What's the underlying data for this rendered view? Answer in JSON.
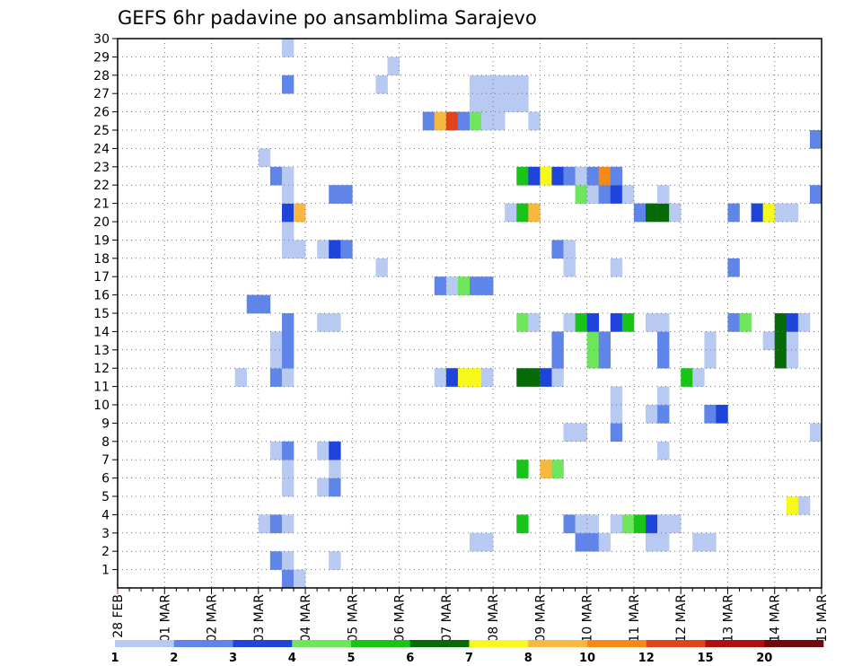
{
  "chart_data": {
    "type": "heatmap",
    "title": "GEFS 6hr padavine po ansamblima Sarajevo",
    "xlabel": "",
    "ylabel": "",
    "x_tick_labels": [
      "28 FEB",
      "01 MAR",
      "02 MAR",
      "03 MAR",
      "04 MAR",
      "05 MAR",
      "06 MAR",
      "07 MAR",
      "08 MAR",
      "09 MAR",
      "10 MAR",
      "11 MAR",
      "12 MAR",
      "13 MAR",
      "14 MAR",
      "15 MAR"
    ],
    "x_unit": "6-hour steps from 28 FEB 00Z",
    "xlim": [
      0,
      60
    ],
    "y_tick_labels": [
      "1",
      "2",
      "3",
      "4",
      "5",
      "6",
      "7",
      "8",
      "9",
      "10",
      "11",
      "12",
      "13",
      "14",
      "15",
      "16",
      "17",
      "18",
      "19",
      "20",
      "21",
      "22",
      "23",
      "24",
      "25",
      "26",
      "27",
      "28",
      "29",
      "30"
    ],
    "ylim": [
      0,
      30
    ],
    "grid": true,
    "legend": {
      "placement": "bottom",
      "thresholds": [
        1,
        2,
        3,
        4,
        5,
        6,
        7,
        8,
        10,
        12,
        15,
        20
      ],
      "colors": [
        "#b8c9f2",
        "#5f85e8",
        "#1f44db",
        "#6ee65c",
        "#19c419",
        "#066b06",
        "#f8f81a",
        "#f8b840",
        "#f58a19",
        "#e0421a",
        "#b01010",
        "#700a0a"
      ]
    },
    "cells": [
      {
        "m": 1,
        "t": 14,
        "c": 1
      },
      {
        "m": 1,
        "t": 15,
        "c": 0
      },
      {
        "m": 2,
        "t": 13,
        "c": 1
      },
      {
        "m": 2,
        "t": 14,
        "c": 0
      },
      {
        "m": 2,
        "t": 18,
        "c": 0
      },
      {
        "m": 3,
        "t": 30,
        "c": 0
      },
      {
        "m": 3,
        "t": 31,
        "c": 0
      },
      {
        "m": 3,
        "t": 39,
        "c": 1
      },
      {
        "m": 3,
        "t": 40,
        "c": 1
      },
      {
        "m": 3,
        "t": 41,
        "c": 0
      },
      {
        "m": 3,
        "t": 45,
        "c": 0
      },
      {
        "m": 3,
        "t": 46,
        "c": 0
      },
      {
        "m": 3,
        "t": 49,
        "c": 0
      },
      {
        "m": 3,
        "t": 50,
        "c": 0
      },
      {
        "m": 4,
        "t": 12,
        "c": 0
      },
      {
        "m": 4,
        "t": 13,
        "c": 1
      },
      {
        "m": 4,
        "t": 14,
        "c": 0
      },
      {
        "m": 4,
        "t": 34,
        "c": 4
      },
      {
        "m": 4,
        "t": 38,
        "c": 1
      },
      {
        "m": 4,
        "t": 39,
        "c": 0
      },
      {
        "m": 4,
        "t": 40,
        "c": 0
      },
      {
        "m": 4,
        "t": 42,
        "c": 0
      },
      {
        "m": 4,
        "t": 43,
        "c": 3
      },
      {
        "m": 4,
        "t": 44,
        "c": 4
      },
      {
        "m": 4,
        "t": 45,
        "c": 2
      },
      {
        "m": 4,
        "t": 46,
        "c": 0
      },
      {
        "m": 4,
        "t": 47,
        "c": 0
      },
      {
        "m": 5,
        "t": 57,
        "c": 6
      },
      {
        "m": 5,
        "t": 58,
        "c": 0
      },
      {
        "m": 6,
        "t": 14,
        "c": 0
      },
      {
        "m": 6,
        "t": 17,
        "c": 0
      },
      {
        "m": 6,
        "t": 18,
        "c": 1
      },
      {
        "m": 7,
        "t": 14,
        "c": 0
      },
      {
        "m": 7,
        "t": 18,
        "c": 0
      },
      {
        "m": 7,
        "t": 34,
        "c": 4
      },
      {
        "m": 7,
        "t": 36,
        "c": 7
      },
      {
        "m": 7,
        "t": 37,
        "c": 3
      },
      {
        "m": 8,
        "t": 13,
        "c": 0
      },
      {
        "m": 8,
        "t": 14,
        "c": 1
      },
      {
        "m": 8,
        "t": 17,
        "c": 0
      },
      {
        "m": 8,
        "t": 18,
        "c": 2
      },
      {
        "m": 8,
        "t": 46,
        "c": 0
      },
      {
        "m": 9,
        "t": 38,
        "c": 0
      },
      {
        "m": 9,
        "t": 39,
        "c": 0
      },
      {
        "m": 9,
        "t": 42,
        "c": 1
      },
      {
        "m": 9,
        "t": 59,
        "c": 0
      },
      {
        "m": 10,
        "t": 42,
        "c": 0
      },
      {
        "m": 10,
        "t": 45,
        "c": 0
      },
      {
        "m": 10,
        "t": 46,
        "c": 1
      },
      {
        "m": 10,
        "t": 50,
        "c": 1
      },
      {
        "m": 10,
        "t": 51,
        "c": 2
      },
      {
        "m": 11,
        "t": 42,
        "c": 0
      },
      {
        "m": 11,
        "t": 46,
        "c": 0
      },
      {
        "m": 12,
        "t": 10,
        "c": 0
      },
      {
        "m": 12,
        "t": 13,
        "c": 1
      },
      {
        "m": 12,
        "t": 14,
        "c": 0
      },
      {
        "m": 12,
        "t": 27,
        "c": 0
      },
      {
        "m": 12,
        "t": 28,
        "c": 2
      },
      {
        "m": 12,
        "t": 29,
        "c": 6
      },
      {
        "m": 12,
        "t": 30,
        "c": 6
      },
      {
        "m": 12,
        "t": 31,
        "c": 0
      },
      {
        "m": 12,
        "t": 34,
        "c": 5
      },
      {
        "m": 12,
        "t": 35,
        "c": 5
      },
      {
        "m": 12,
        "t": 36,
        "c": 2
      },
      {
        "m": 12,
        "t": 37,
        "c": 0
      },
      {
        "m": 12,
        "t": 48,
        "c": 4
      },
      {
        "m": 12,
        "t": 49,
        "c": 0
      },
      {
        "m": 13,
        "t": 13,
        "c": 0
      },
      {
        "m": 13,
        "t": 14,
        "c": 1
      },
      {
        "m": 13,
        "t": 37,
        "c": 1
      },
      {
        "m": 13,
        "t": 40,
        "c": 3
      },
      {
        "m": 13,
        "t": 41,
        "c": 1
      },
      {
        "m": 13,
        "t": 46,
        "c": 1
      },
      {
        "m": 13,
        "t": 50,
        "c": 0
      },
      {
        "m": 13,
        "t": 56,
        "c": 5
      },
      {
        "m": 13,
        "t": 57,
        "c": 0
      },
      {
        "m": 14,
        "t": 13,
        "c": 0
      },
      {
        "m": 14,
        "t": 14,
        "c": 1
      },
      {
        "m": 14,
        "t": 37,
        "c": 1
      },
      {
        "m": 14,
        "t": 40,
        "c": 3
      },
      {
        "m": 14,
        "t": 41,
        "c": 1
      },
      {
        "m": 14,
        "t": 46,
        "c": 1
      },
      {
        "m": 14,
        "t": 50,
        "c": 0
      },
      {
        "m": 14,
        "t": 55,
        "c": 0
      },
      {
        "m": 14,
        "t": 56,
        "c": 5
      },
      {
        "m": 14,
        "t": 57,
        "c": 0
      },
      {
        "m": 15,
        "t": 14,
        "c": 1
      },
      {
        "m": 15,
        "t": 17,
        "c": 0
      },
      {
        "m": 15,
        "t": 18,
        "c": 0
      },
      {
        "m": 15,
        "t": 34,
        "c": 3
      },
      {
        "m": 15,
        "t": 35,
        "c": 0
      },
      {
        "m": 15,
        "t": 38,
        "c": 0
      },
      {
        "m": 15,
        "t": 39,
        "c": 4
      },
      {
        "m": 15,
        "t": 40,
        "c": 2
      },
      {
        "m": 15,
        "t": 42,
        "c": 2
      },
      {
        "m": 15,
        "t": 43,
        "c": 4
      },
      {
        "m": 15,
        "t": 45,
        "c": 0
      },
      {
        "m": 15,
        "t": 46,
        "c": 0
      },
      {
        "m": 15,
        "t": 52,
        "c": 1
      },
      {
        "m": 15,
        "t": 53,
        "c": 3
      },
      {
        "m": 15,
        "t": 56,
        "c": 5
      },
      {
        "m": 15,
        "t": 57,
        "c": 2
      },
      {
        "m": 15,
        "t": 58,
        "c": 0
      },
      {
        "m": 16,
        "t": 11,
        "c": 1
      },
      {
        "m": 16,
        "t": 12,
        "c": 1
      },
      {
        "m": 17,
        "t": 27,
        "c": 1
      },
      {
        "m": 17,
        "t": 28,
        "c": 0
      },
      {
        "m": 17,
        "t": 29,
        "c": 3
      },
      {
        "m": 17,
        "t": 30,
        "c": 1
      },
      {
        "m": 17,
        "t": 31,
        "c": 1
      },
      {
        "m": 18,
        "t": 22,
        "c": 0
      },
      {
        "m": 18,
        "t": 38,
        "c": 0
      },
      {
        "m": 18,
        "t": 42,
        "c": 0
      },
      {
        "m": 18,
        "t": 52,
        "c": 1
      },
      {
        "m": 19,
        "t": 14,
        "c": 0
      },
      {
        "m": 19,
        "t": 15,
        "c": 0
      },
      {
        "m": 19,
        "t": 17,
        "c": 0
      },
      {
        "m": 19,
        "t": 18,
        "c": 2
      },
      {
        "m": 19,
        "t": 19,
        "c": 1
      },
      {
        "m": 19,
        "t": 37,
        "c": 1
      },
      {
        "m": 19,
        "t": 38,
        "c": 0
      },
      {
        "m": 20,
        "t": 14,
        "c": 0
      },
      {
        "m": 21,
        "t": 14,
        "c": 2
      },
      {
        "m": 21,
        "t": 15,
        "c": 7
      },
      {
        "m": 21,
        "t": 33,
        "c": 0
      },
      {
        "m": 21,
        "t": 34,
        "c": 4
      },
      {
        "m": 21,
        "t": 35,
        "c": 7
      },
      {
        "m": 21,
        "t": 44,
        "c": 1
      },
      {
        "m": 21,
        "t": 45,
        "c": 5
      },
      {
        "m": 21,
        "t": 46,
        "c": 5
      },
      {
        "m": 21,
        "t": 47,
        "c": 0
      },
      {
        "m": 21,
        "t": 52,
        "c": 1
      },
      {
        "m": 21,
        "t": 54,
        "c": 2
      },
      {
        "m": 21,
        "t": 55,
        "c": 6
      },
      {
        "m": 21,
        "t": 56,
        "c": 0
      },
      {
        "m": 21,
        "t": 57,
        "c": 0
      },
      {
        "m": 22,
        "t": 14,
        "c": 0
      },
      {
        "m": 22,
        "t": 18,
        "c": 1
      },
      {
        "m": 22,
        "t": 19,
        "c": 1
      },
      {
        "m": 22,
        "t": 39,
        "c": 3
      },
      {
        "m": 22,
        "t": 40,
        "c": 0
      },
      {
        "m": 22,
        "t": 41,
        "c": 1
      },
      {
        "m": 22,
        "t": 42,
        "c": 2
      },
      {
        "m": 22,
        "t": 43,
        "c": 0
      },
      {
        "m": 22,
        "t": 46,
        "c": 0
      },
      {
        "m": 22,
        "t": 59,
        "c": 1
      },
      {
        "m": 23,
        "t": 13,
        "c": 1
      },
      {
        "m": 23,
        "t": 14,
        "c": 0
      },
      {
        "m": 23,
        "t": 34,
        "c": 4
      },
      {
        "m": 23,
        "t": 35,
        "c": 2
      },
      {
        "m": 23,
        "t": 36,
        "c": 6
      },
      {
        "m": 23,
        "t": 37,
        "c": 2
      },
      {
        "m": 23,
        "t": 38,
        "c": 1
      },
      {
        "m": 23,
        "t": 39,
        "c": 0
      },
      {
        "m": 23,
        "t": 40,
        "c": 1
      },
      {
        "m": 23,
        "t": 41,
        "c": 8
      },
      {
        "m": 23,
        "t": 42,
        "c": 1
      },
      {
        "m": 24,
        "t": 12,
        "c": 0
      },
      {
        "m": 25,
        "t": 59,
        "c": 1
      },
      {
        "m": 26,
        "t": 26,
        "c": 1
      },
      {
        "m": 26,
        "t": 27,
        "c": 7
      },
      {
        "m": 26,
        "t": 28,
        "c": 9
      },
      {
        "m": 26,
        "t": 29,
        "c": 1
      },
      {
        "m": 26,
        "t": 30,
        "c": 3
      },
      {
        "m": 26,
        "t": 31,
        "c": 0
      },
      {
        "m": 26,
        "t": 32,
        "c": 0
      },
      {
        "m": 26,
        "t": 35,
        "c": 0
      },
      {
        "m": 27,
        "t": 30,
        "c": 0
      },
      {
        "m": 27,
        "t": 31,
        "c": 0
      },
      {
        "m": 27,
        "t": 32,
        "c": 0
      },
      {
        "m": 27,
        "t": 33,
        "c": 0
      },
      {
        "m": 27,
        "t": 34,
        "c": 0
      },
      {
        "m": 28,
        "t": 14,
        "c": 1
      },
      {
        "m": 28,
        "t": 22,
        "c": 0
      },
      {
        "m": 28,
        "t": 30,
        "c": 0
      },
      {
        "m": 28,
        "t": 31,
        "c": 0
      },
      {
        "m": 28,
        "t": 32,
        "c": 0
      },
      {
        "m": 28,
        "t": 33,
        "c": 0
      },
      {
        "m": 28,
        "t": 34,
        "c": 0
      },
      {
        "m": 29,
        "t": 23,
        "c": 0
      },
      {
        "m": 30,
        "t": 14,
        "c": 0
      }
    ]
  }
}
